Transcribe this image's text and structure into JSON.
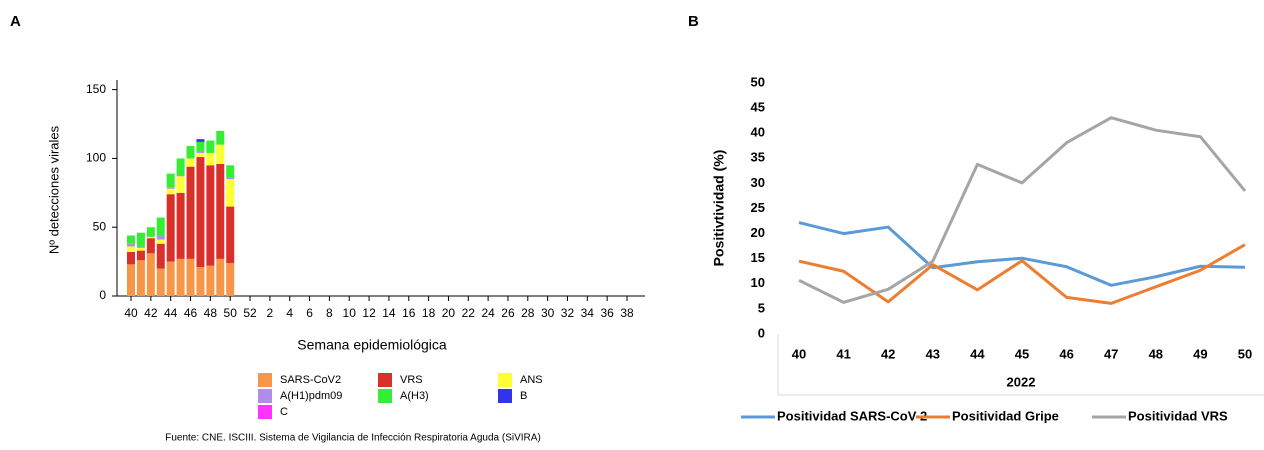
{
  "chart_data": [
    {
      "type": "bar",
      "panel": "A",
      "stacked": true,
      "ylabel": "Nº detecciones virales",
      "xlabel": "Semana epidemiológica",
      "source": "Fuente: CNE. ISCIII. Sistema de Vigilancia de Infección Respiratoria Aguda (SiVIRA)",
      "categories": [
        40,
        null,
        42,
        null,
        44,
        null,
        46,
        null,
        48,
        null,
        50,
        null,
        52,
        null,
        2,
        null,
        4,
        null,
        6,
        null,
        8,
        null,
        10,
        null,
        12,
        null,
        14,
        null,
        16,
        null,
        18,
        null,
        20,
        null,
        22,
        null,
        24,
        null,
        26,
        null,
        28,
        null,
        30,
        null,
        32,
        null,
        34,
        null,
        36,
        null,
        38,
        null
      ],
      "ylim": [
        0,
        157
      ],
      "yticks": [
        0,
        50,
        100,
        150
      ],
      "series": [
        {
          "name": "SARS-CoV2",
          "color": "#f79646",
          "values": [
            23,
            26,
            31,
            20,
            25,
            27,
            27,
            21,
            22,
            27,
            24,
            null,
            null,
            null,
            null,
            null,
            null,
            null,
            null,
            null,
            null,
            null,
            null,
            null,
            null,
            null,
            null,
            null,
            null,
            null,
            null,
            null,
            null,
            null,
            null,
            null,
            null,
            null,
            null,
            null,
            null,
            null,
            null,
            null,
            null,
            null,
            null,
            null,
            null,
            null,
            null,
            null
          ]
        },
        {
          "name": "VRS",
          "color": "#d9302c",
          "values": [
            9,
            7,
            11,
            18,
            49,
            48,
            67,
            80,
            73,
            69,
            41,
            null,
            null,
            null,
            null,
            null,
            null,
            null,
            null,
            null,
            null,
            null,
            null,
            null,
            null,
            null,
            null,
            null,
            null,
            null,
            null,
            null,
            null,
            null,
            null,
            null,
            null,
            null,
            null,
            null,
            null,
            null,
            null,
            null,
            null,
            null,
            null,
            null,
            null,
            null,
            null,
            null
          ]
        },
        {
          "name": "ANS",
          "color": "#ffff33",
          "values": [
            4,
            2,
            1,
            3,
            4,
            12,
            6,
            3,
            9,
            14,
            20,
            null,
            null,
            null,
            null,
            null,
            null,
            null,
            null,
            null,
            null,
            null,
            null,
            null,
            null,
            null,
            null,
            null,
            null,
            null,
            null,
            null,
            null,
            null,
            null,
            null,
            null,
            null,
            null,
            null,
            null,
            null,
            null,
            null,
            null,
            null,
            null,
            null,
            null,
            null,
            null,
            null
          ]
        },
        {
          "name": "A(H1)pdm09",
          "color": "#b08ee8",
          "values": [
            2,
            1,
            0,
            3,
            1,
            1,
            0,
            1,
            0,
            0,
            1,
            null,
            null,
            null,
            null,
            null,
            null,
            null,
            null,
            null,
            null,
            null,
            null,
            null,
            null,
            null,
            null,
            null,
            null,
            null,
            null,
            null,
            null,
            null,
            null,
            null,
            null,
            null,
            null,
            null,
            null,
            null,
            null,
            null,
            null,
            null,
            null,
            null,
            null,
            null,
            null,
            null
          ]
        },
        {
          "name": "A(H3)",
          "color": "#33ee33",
          "values": [
            6,
            10,
            7,
            13,
            10,
            12,
            9,
            7,
            9,
            10,
            9,
            null,
            null,
            null,
            null,
            null,
            null,
            null,
            null,
            null,
            null,
            null,
            null,
            null,
            null,
            null,
            null,
            null,
            null,
            null,
            null,
            null,
            null,
            null,
            null,
            null,
            null,
            null,
            null,
            null,
            null,
            null,
            null,
            null,
            null,
            null,
            null,
            null,
            null,
            null,
            null,
            null
          ]
        },
        {
          "name": "B",
          "color": "#3333ee",
          "values": [
            0,
            0,
            0,
            0,
            0,
            0,
            0,
            2,
            0,
            0,
            0,
            null,
            null,
            null,
            null,
            null,
            null,
            null,
            null,
            null,
            null,
            null,
            null,
            null,
            null,
            null,
            null,
            null,
            null,
            null,
            null,
            null,
            null,
            null,
            null,
            null,
            null,
            null,
            null,
            null,
            null,
            null,
            null,
            null,
            null,
            null,
            null,
            null,
            null,
            null,
            null,
            null
          ]
        },
        {
          "name": "C",
          "color": "#ff33ff",
          "values": [
            0,
            0,
            0,
            0,
            0,
            0,
            0,
            0,
            0,
            0,
            0,
            null,
            null,
            null,
            null,
            null,
            null,
            null,
            null,
            null,
            null,
            null,
            null,
            null,
            null,
            null,
            null,
            null,
            null,
            null,
            null,
            null,
            null,
            null,
            null,
            null,
            null,
            null,
            null,
            null,
            null,
            null,
            null,
            null,
            null,
            null,
            null,
            null,
            null,
            null,
            null,
            null
          ]
        }
      ]
    },
    {
      "type": "line",
      "panel": "B",
      "ylabel": "Positivtividad (%)",
      "xlabel": "2022",
      "categories": [
        40,
        41,
        42,
        43,
        44,
        45,
        46,
        47,
        48,
        49,
        50
      ],
      "ylim": [
        0,
        50
      ],
      "yticks": [
        0,
        5,
        10,
        15,
        20,
        25,
        30,
        35,
        40,
        45,
        50
      ],
      "series": [
        {
          "name": "Positividad SARS-CoV-2",
          "color": "#5b9bd5",
          "values": [
            22.2,
            20,
            21.3,
            13.2,
            14.4,
            15.1,
            13.4,
            9.7,
            11.4,
            13.5,
            13.3
          ]
        },
        {
          "name": "Positividad Gripe",
          "color": "#ed7d31",
          "values": [
            14.5,
            12.5,
            6.4,
            13.8,
            8.8,
            14.6,
            7.3,
            6.1,
            9.4,
            12.7,
            17.8
          ]
        },
        {
          "name": "Positividad VRS",
          "color": "#a5a5a5",
          "values": [
            10.7,
            6.3,
            8.9,
            14.5,
            33.8,
            30.1,
            38.1,
            43.1,
            40.6,
            39.3,
            28.5
          ]
        }
      ]
    }
  ]
}
